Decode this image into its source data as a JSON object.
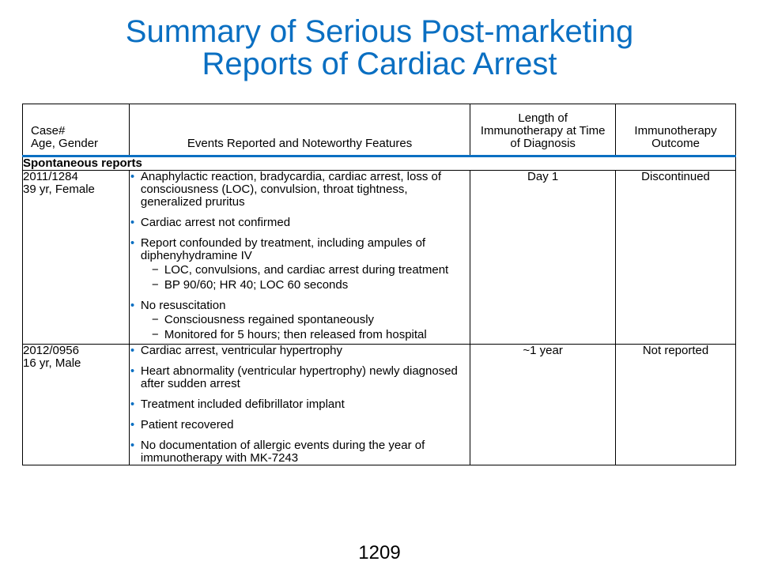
{
  "title": {
    "line1": "Summary of Serious Post-marketing",
    "line2": "Reports of Cardiac Arrest"
  },
  "table": {
    "headers": {
      "case_line1": "Case#",
      "case_line2": "Age, Gender",
      "events": "Events Reported and Noteworthy Features",
      "length": "Length of Immunotherapy at Time of Diagnosis",
      "outcome": "Immunotherapy Outcome"
    },
    "section_label": "Spontaneous reports",
    "rows": [
      {
        "case_id": "2011/1284",
        "age_gender": "39 yr, Female",
        "length": "Day 1",
        "outcome": "Discontinued",
        "events": [
          {
            "text": "Anaphylactic reaction, bradycardia, cardiac arrest, loss of consciousness (LOC), convulsion, throat tightness, generalized pruritus",
            "sub": []
          },
          {
            "text": "Cardiac arrest not confirmed",
            "sub": []
          },
          {
            "text": "Report confounded by treatment, including ampules  of diphenyhydramine IV",
            "sub": [
              "LOC, convulsions, and cardiac arrest during treatment",
              "BP 90/60; HR 40; LOC 60 seconds"
            ]
          },
          {
            "text": "No resuscitation",
            "sub": [
              "Consciousness regained spontaneously",
              "Monitored for 5 hours; then released from hospital"
            ]
          }
        ]
      },
      {
        "case_id": "2012/0956",
        "age_gender": "16 yr, Male",
        "length": "~1 year",
        "outcome": "Not reported",
        "events": [
          {
            "text": "Cardiac arrest, ventricular hypertrophy",
            "sub": []
          },
          {
            "text": "Heart abnormality (ventricular hypertrophy) newly diagnosed after sudden arrest",
            "sub": []
          },
          {
            "text": "Treatment included defibrillator implant",
            "sub": []
          },
          {
            "text": "Patient recovered",
            "sub": []
          },
          {
            "text": "No documentation of allergic events during the year of immunotherapy with MK-7243",
            "sub": []
          }
        ]
      }
    ]
  },
  "bullet_glyph": "•",
  "dash_glyph": "−",
  "accent_color": "#0a6fc2",
  "page_number": "1209"
}
